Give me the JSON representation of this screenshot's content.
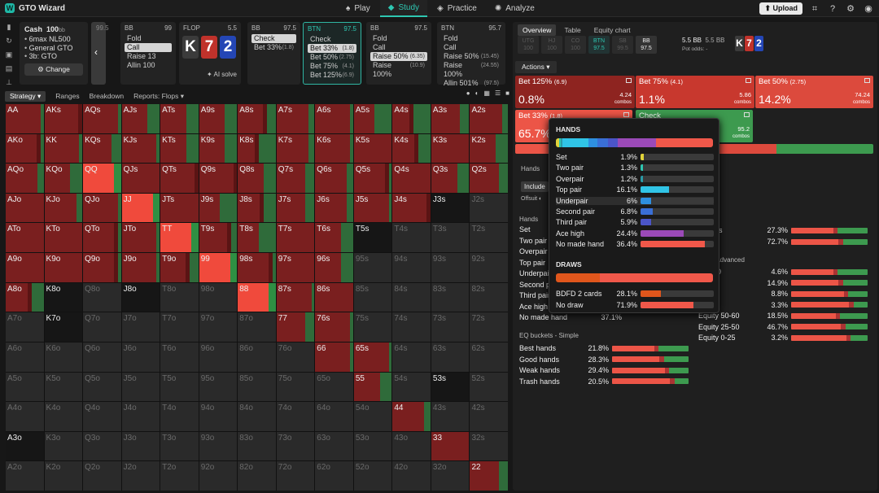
{
  "app": {
    "title": "GTO Wizard"
  },
  "nav": [
    {
      "label": "Play",
      "icon": "cards-icon"
    },
    {
      "label": "Study",
      "icon": "graduation-cap-icon",
      "active": true
    },
    {
      "label": "Practice",
      "icon": "gamepad-icon"
    },
    {
      "label": "Analyze",
      "icon": "bulb-icon"
    }
  ],
  "upload": "Upload",
  "info": {
    "game": "Cash",
    "stack": "100",
    "unit": "bb",
    "items": [
      "6max NL500",
      "General GTO",
      "3b: GTO"
    ],
    "change": "Change"
  },
  "nav_strip_value": "99.5",
  "players": [
    {
      "pos": "BB",
      "stack": "99",
      "rows": [
        {
          "l": "Fold",
          "n": ""
        },
        {
          "l": "Call",
          "n": "",
          "sel": true
        },
        {
          "l": "Raise 13",
          "n": ""
        },
        {
          "l": "Allin 100",
          "n": ""
        }
      ]
    },
    {
      "pos": "BB",
      "stack": "97.5",
      "rows": [
        {
          "l": "Check",
          "n": "",
          "sel": true
        },
        {
          "l": "Bet 33%",
          "n": "(1.8)"
        }
      ]
    },
    {
      "pos": "BTN",
      "stack": "97.5",
      "btn": true,
      "rows": [
        {
          "l": "Check",
          "n": ""
        },
        {
          "l": "Bet 33%",
          "n": "(1.8)",
          "sel": true
        },
        {
          "l": "Bet 50%",
          "n": "(2.75)"
        },
        {
          "l": "Bet 75%",
          "n": "(4.1)"
        },
        {
          "l": "Bet 125%",
          "n": "(6.9)"
        }
      ]
    },
    {
      "pos": "BB",
      "stack": "97.5",
      "rows": [
        {
          "l": "Fold",
          "n": ""
        },
        {
          "l": "Call",
          "n": ""
        },
        {
          "l": "Raise 50%",
          "n": "(6.35)",
          "sel": true
        },
        {
          "l": "Raise 100%",
          "n": "(10.9)"
        }
      ]
    },
    {
      "pos": "BTN",
      "stack": "95.7",
      "rows": [
        {
          "l": "Fold",
          "n": ""
        },
        {
          "l": "Call",
          "n": ""
        },
        {
          "l": "Raise 50%",
          "n": "(15.45)"
        },
        {
          "l": "Raise 100%",
          "n": "(24.55)"
        },
        {
          "l": "Allin 501%",
          "n": "(97.5)"
        }
      ]
    }
  ],
  "flop": {
    "label": "FLOP",
    "pot": "5.5",
    "cards": [
      {
        "r": "K",
        "c": "#3b3b3b"
      },
      {
        "r": "7",
        "c": "#c0322b"
      },
      {
        "r": "2",
        "c": "#2446b5"
      }
    ],
    "ai": "AI solve"
  },
  "subtabs": [
    "Strategy",
    "Ranges",
    "Breakdown",
    "Reports: Flops"
  ],
  "grid": {
    "ranks": [
      "A",
      "K",
      "Q",
      "J",
      "T",
      "9",
      "8",
      "7",
      "6",
      "5",
      "4",
      "3",
      "2"
    ],
    "dim": [
      "J2s",
      "T5s",
      "T4s",
      "T3s",
      "T2s",
      "95s",
      "94s",
      "93s",
      "92s",
      "85s",
      "84s",
      "83s",
      "82s",
      "75s",
      "74s",
      "73s",
      "72s",
      "64s",
      "63s",
      "62s",
      "54s",
      "53s",
      "52s",
      "43s",
      "42s",
      "32s",
      "Q8o",
      "Q7o",
      "Q6o",
      "Q5o",
      "Q4o",
      "Q3o",
      "Q2o",
      "J7o",
      "J6o",
      "J5o",
      "J4o",
      "J3o",
      "J2o",
      "T7o",
      "T6o",
      "T5o",
      "T4o",
      "T3o",
      "T2o",
      "97o",
      "96o",
      "95o",
      "94o",
      "93o",
      "92o",
      "87o",
      "86o",
      "85o",
      "84o",
      "83o",
      "82o",
      "76o",
      "75o",
      "74o",
      "73o",
      "72o",
      "65o",
      "64o",
      "63o",
      "62o",
      "54o",
      "53o",
      "52o",
      "43o",
      "42o",
      "32o",
      "K6o",
      "K5o",
      "K4o",
      "K3o",
      "K2o",
      "A2o",
      "A3o",
      "A4o",
      "A5o",
      "A6o",
      "A7o",
      "K7o",
      "J8o",
      "T8o",
      "98o",
      "J3s"
    ],
    "dark": [
      "J3s",
      "T5s",
      "53s",
      "J8o",
      "K8o",
      "A3o",
      "K7o"
    ],
    "bright": [
      "QQ",
      "JJ",
      "TT",
      "99",
      "88"
    ],
    "green_heavy": [
      "T8s",
      "A5s",
      "A4s",
      "K8s",
      "J9s"
    ]
  },
  "right": {
    "tabs": [
      "Overview",
      "Table",
      "Equity chart"
    ],
    "positions": [
      {
        "p": "UTG",
        "s": "100"
      },
      {
        "p": "HJ",
        "s": "100"
      },
      {
        "p": "CO",
        "s": "100"
      },
      {
        "p": "BTN",
        "s": "97.5",
        "btn": true
      },
      {
        "p": "SB",
        "s": "99.5"
      },
      {
        "p": "BB",
        "s": "97.5",
        "bb": true
      }
    ],
    "pot": "5.5 BB",
    "pot2": "5.5 BB",
    "pot_odds": "Pot odds: -",
    "actions": "Actions",
    "action_boxes": [
      {
        "name": "Bet 125%",
        "size": "(6.9)",
        "pct": "0.8%",
        "combos": "4.24",
        "color": "#8e2420"
      },
      {
        "name": "Bet 75%",
        "size": "(4.1)",
        "pct": "1.1%",
        "combos": "5.86",
        "color": "#c8382e"
      },
      {
        "name": "Bet 50%",
        "size": "(2.75)",
        "pct": "14.2%",
        "combos": "74.24",
        "color": "#dc4a3d"
      },
      {
        "name": "Bet 33%",
        "size": "(1.8)",
        "pct": "65.7%",
        "combos": "",
        "color": "#ec5547"
      },
      {
        "name": "Check",
        "size": "",
        "pct": "",
        "combos": "95.2",
        "color": "#3d9a4f"
      }
    ],
    "combos_label": "combos",
    "hands_label": "Hands",
    "include": "Include",
    "offsuit": "Offsuit",
    "hands_list_label": "Hands",
    "hands_rows": [
      "Set",
      "Two pair",
      "Overpair",
      "Top pair",
      "Underpair",
      "Second pair",
      "Third pair",
      "Ace high",
      "No made hand"
    ],
    "no_made_pct": "37.1%",
    "draws_rows": [
      {
        "n": "2 cards",
        "p": "27.3%",
        "v": 27.3
      },
      {
        "n": "w",
        "p": "72.7%",
        "v": 72.7
      }
    ],
    "eq_adv_label": "kets - Advanced",
    "eq_adv": [
      {
        "n": "90-100",
        "p": "4.6%",
        "v": 4.6
      },
      {
        "n": "80-90",
        "p": "14.9%",
        "v": 14.9
      },
      {
        "n": "70-80",
        "p": "8.8%",
        "v": 8.8
      },
      {
        "n": "60-70",
        "p": "3.3%",
        "v": 3.3
      },
      {
        "n": "Equity 50-60",
        "p": "18.5%",
        "v": 18.5
      },
      {
        "n": "Equity 25-50",
        "p": "46.7%",
        "v": 46.7
      },
      {
        "n": "Equity 0-25",
        "p": "3.2%",
        "v": 3.2
      }
    ],
    "eq_simple_label": "EQ buckets - Simple",
    "eq_simple": [
      {
        "n": "Best hands",
        "p": "21.8%",
        "v": 21.8
      },
      {
        "n": "Good hands",
        "p": "28.3%",
        "v": 28.3
      },
      {
        "n": "Weak hands",
        "p": "29.4%",
        "v": 29.4
      },
      {
        "n": "Trash hands",
        "p": "20.5%",
        "v": 20.5
      }
    ]
  },
  "popup": {
    "hands_title": "HANDS",
    "rows": [
      {
        "n": "Set",
        "p": "1.9%",
        "v": 1.9,
        "c": "#e0d33a"
      },
      {
        "n": "Two pair",
        "p": "1.3%",
        "v": 1.3,
        "c": "#2ec6b1"
      },
      {
        "n": "Overpair",
        "p": "1.2%",
        "v": 1.2,
        "c": "#2a9aa6"
      },
      {
        "n": "Top pair",
        "p": "16.1%",
        "v": 16.1,
        "c": "#30c4e6"
      },
      {
        "n": "Underpair",
        "p": "6%",
        "v": 6,
        "c": "#2e8fe0"
      },
      {
        "n": "Second pair",
        "p": "6.8%",
        "v": 6.8,
        "c": "#3a6fd6"
      },
      {
        "n": "Third pair",
        "p": "5.9%",
        "v": 5.9,
        "c": "#4b55c8"
      },
      {
        "n": "Ace high",
        "p": "24.4%",
        "v": 24.4,
        "c": "#9b4ab8"
      },
      {
        "n": "No made hand",
        "p": "36.4%",
        "v": 36.4,
        "c": "#f0584a"
      }
    ],
    "draws_title": "DRAWS",
    "draws": [
      {
        "n": "BDFD 2 cards",
        "p": "28.1%",
        "v": 28.1,
        "c": "#e0561c"
      },
      {
        "n": "No draw",
        "p": "71.9%",
        "v": 71.9,
        "c": "#f0584a"
      }
    ]
  },
  "colors": {
    "red": "#7a1f1f",
    "green": "#2f6b3a",
    "accent": "#2ec6b1",
    "bright": "#f04a3c"
  }
}
